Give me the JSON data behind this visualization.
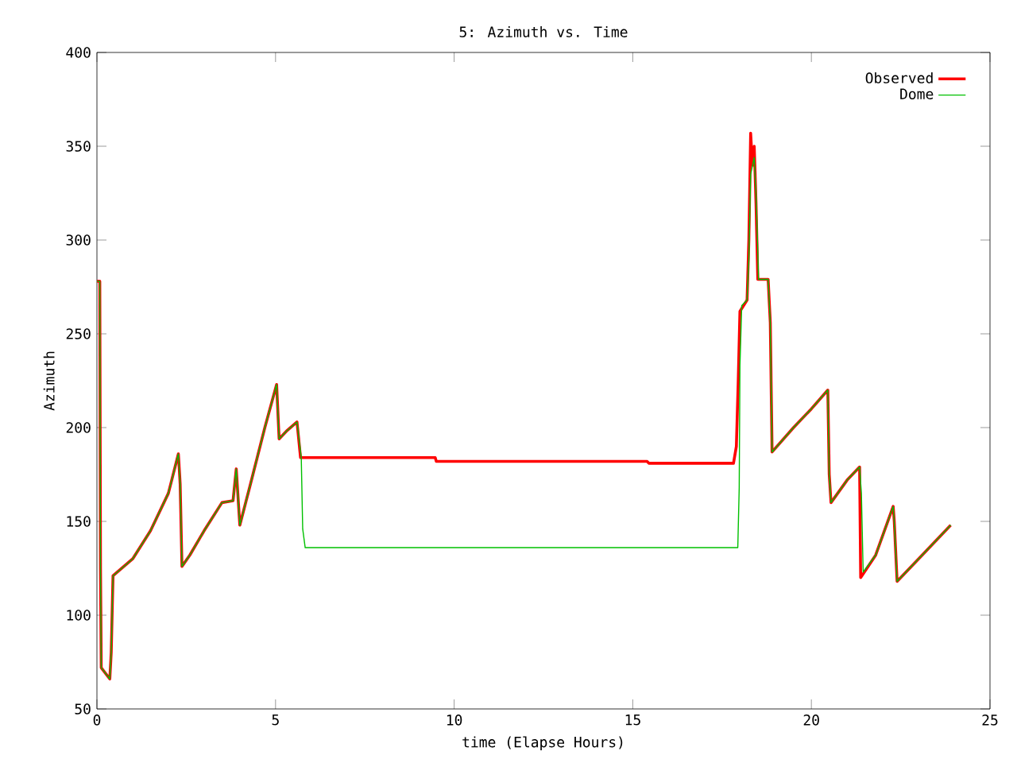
{
  "chart_data": {
    "type": "line",
    "title": "5: Azimuth vs. Time",
    "xlabel": "time (Elapse Hours)",
    "ylabel": "Azimuth",
    "xlim": [
      0,
      25
    ],
    "xticks": [
      0,
      5,
      10,
      15,
      20,
      25
    ],
    "ylim": [
      50,
      400
    ],
    "yticks": [
      50,
      100,
      150,
      200,
      250,
      300,
      350,
      400
    ],
    "legend": "top right",
    "line_style": "solid",
    "series": [
      {
        "name": "Observed",
        "color": "#ff0000",
        "x": [
          0,
          0.08,
          0.1,
          0.12,
          0.36,
          0.4,
          0.45,
          1.0,
          1.5,
          2.0,
          2.28,
          2.33,
          2.38,
          2.6,
          3.0,
          3.5,
          3.81,
          3.9,
          4.0,
          4.3,
          4.7,
          5.03,
          5.1,
          5.3,
          5.6,
          5.7,
          9.47,
          9.5,
          15.4,
          15.45,
          17.82,
          17.9,
          17.95,
          18.0,
          18.2,
          18.25,
          18.3,
          18.35,
          18.4,
          18.45,
          18.5,
          18.79,
          18.85,
          18.9,
          19.5,
          20.0,
          20.46,
          20.5,
          20.55,
          21.0,
          21.35,
          21.38,
          21.8,
          22.29,
          22.32,
          22.4,
          23.0,
          23.9
        ],
        "values": [
          278,
          278,
          125,
          72,
          66,
          80,
          121,
          130,
          145,
          165,
          186,
          170,
          126,
          132,
          145,
          160,
          161,
          178,
          148,
          170,
          200,
          223,
          194,
          198,
          203,
          184,
          184,
          182,
          182,
          181,
          181,
          190,
          223,
          262,
          268,
          300,
          357,
          340,
          350,
          320,
          279,
          279,
          256,
          187,
          200,
          210,
          220,
          175,
          160,
          172,
          179,
          120,
          132,
          158,
          150,
          118,
          130,
          148
        ]
      },
      {
        "name": "Dome",
        "color": "#00c000",
        "x": [
          0,
          0.08,
          0.1,
          0.12,
          0.36,
          0.4,
          0.45,
          1.0,
          1.5,
          2.0,
          2.28,
          2.33,
          2.38,
          2.6,
          3.0,
          3.5,
          3.81,
          3.9,
          4.0,
          4.3,
          4.7,
          5.03,
          5.1,
          5.3,
          5.6,
          5.72,
          5.76,
          5.83,
          17.94,
          17.98,
          18.0,
          18.05,
          18.2,
          18.25,
          18.3,
          18.4,
          18.45,
          18.5,
          18.52,
          18.79,
          18.85,
          18.9,
          19.5,
          20.0,
          20.46,
          20.5,
          20.55,
          21.0,
          21.35,
          21.4,
          21.45,
          21.8,
          22.29,
          22.32,
          22.4,
          23.0,
          23.9
        ],
        "values": [
          278,
          278,
          125,
          72,
          66,
          80,
          121,
          130,
          145,
          165,
          186,
          170,
          126,
          132,
          145,
          160,
          161,
          178,
          148,
          170,
          200,
          223,
          194,
          198,
          203,
          184,
          146,
          136,
          136,
          168,
          233,
          265,
          268,
          290,
          335,
          344,
          325,
          294,
          279,
          279,
          256,
          187,
          200,
          210,
          220,
          175,
          160,
          172,
          179,
          165,
          123,
          132,
          158,
          150,
          118,
          130,
          148
        ]
      }
    ]
  }
}
